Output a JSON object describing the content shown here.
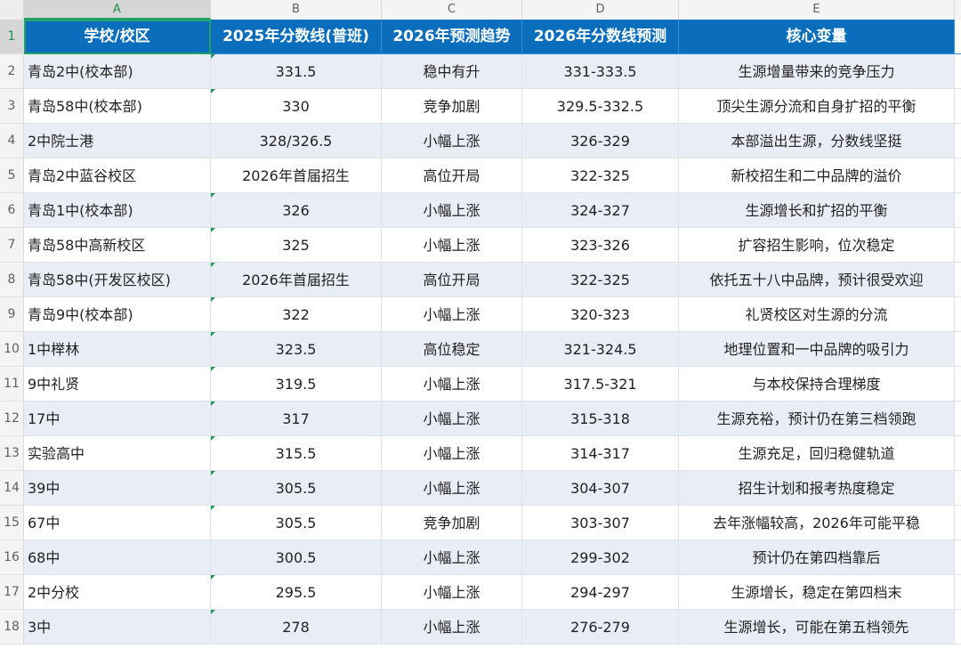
{
  "columns": [
    "A",
    "B",
    "C",
    "D",
    "E"
  ],
  "header": [
    "学校/校区",
    "2025年分数线(普班)",
    "2026年预测趋势",
    "2026年分数线预测",
    "核心变量"
  ],
  "rows": [
    {
      "n": "2",
      "a": "青岛2中(校本部)",
      "b": "331.5",
      "c": "稳中有升",
      "d": "331-333.5",
      "e": "生源增量带来的竞争压力"
    },
    {
      "n": "3",
      "a": "青岛58中(校本部)",
      "b": "330",
      "c": "竞争加剧",
      "d": "329.5-332.5",
      "e": "顶尖生源分流和自身扩招的平衡"
    },
    {
      "n": "4",
      "a": "2中院士港",
      "b": "328/326.5",
      "c": "小幅上涨",
      "d": "326-329",
      "e": "本部溢出生源，分数线坚挺"
    },
    {
      "n": "5",
      "a": "青岛2中蓝谷校区",
      "b": "2026年首届招生",
      "c": "高位开局",
      "d": "322-325",
      "e": "新校招生和二中品牌的溢价"
    },
    {
      "n": "6",
      "a": "青岛1中(校本部)",
      "b": "326",
      "c": "小幅上涨",
      "d": "324-327",
      "e": "生源增长和扩招的平衡"
    },
    {
      "n": "7",
      "a": "青岛58中高新校区",
      "b": "325",
      "c": "小幅上涨",
      "d": "323-326",
      "e": "扩容招生影响，位次稳定"
    },
    {
      "n": "8",
      "a": "青岛58中(开发区校区)",
      "b": "2026年首届招生",
      "c": "高位开局",
      "d": "322-325",
      "e": "依托五十八中品牌，预计很受欢迎"
    },
    {
      "n": "9",
      "a": "青岛9中(校本部)",
      "b": "322",
      "c": "小幅上涨",
      "d": "320-323",
      "e": "礼贤校区对生源的分流"
    },
    {
      "n": "10",
      "a": "1中榉林",
      "b": "323.5",
      "c": "高位稳定",
      "d": "321-324.5",
      "e": "地理位置和一中品牌的吸引力"
    },
    {
      "n": "11",
      "a": "9中礼贤",
      "b": "319.5",
      "c": "小幅上涨",
      "d": "317.5-321",
      "e": "与本校保持合理梯度"
    },
    {
      "n": "12",
      "a": "17中",
      "b": "317",
      "c": "小幅上涨",
      "d": "315-318",
      "e": "生源充裕，预计仍在第三档领跑"
    },
    {
      "n": "13",
      "a": "实验高中",
      "b": "315.5",
      "c": "小幅上涨",
      "d": "314-317",
      "e": "生源充足，回归稳健轨道"
    },
    {
      "n": "14",
      "a": "39中",
      "b": "305.5",
      "c": "小幅上涨",
      "d": "304-307",
      "e": "招生计划和报考热度稳定"
    },
    {
      "n": "15",
      "a": "67中",
      "b": "305.5",
      "c": "竞争加剧",
      "d": "303-307",
      "e": "去年涨幅较高，2026年可能平稳"
    },
    {
      "n": "16",
      "a": "68中",
      "b": "300.5",
      "c": "小幅上涨",
      "d": "299-302",
      "e": "预计仍在第四档靠后"
    },
    {
      "n": "17",
      "a": "2中分校",
      "b": "295.5",
      "c": "小幅上涨",
      "d": "294-297",
      "e": "生源增长，稳定在第四档末"
    },
    {
      "n": "18",
      "a": "3中",
      "b": "278",
      "c": "小幅上涨",
      "d": "276-279",
      "e": "生源增长，可能在第五档领先"
    }
  ],
  "colors": {
    "header_bg": "#0a6ebd",
    "band": "#e9eef6",
    "select": "#21a366"
  }
}
